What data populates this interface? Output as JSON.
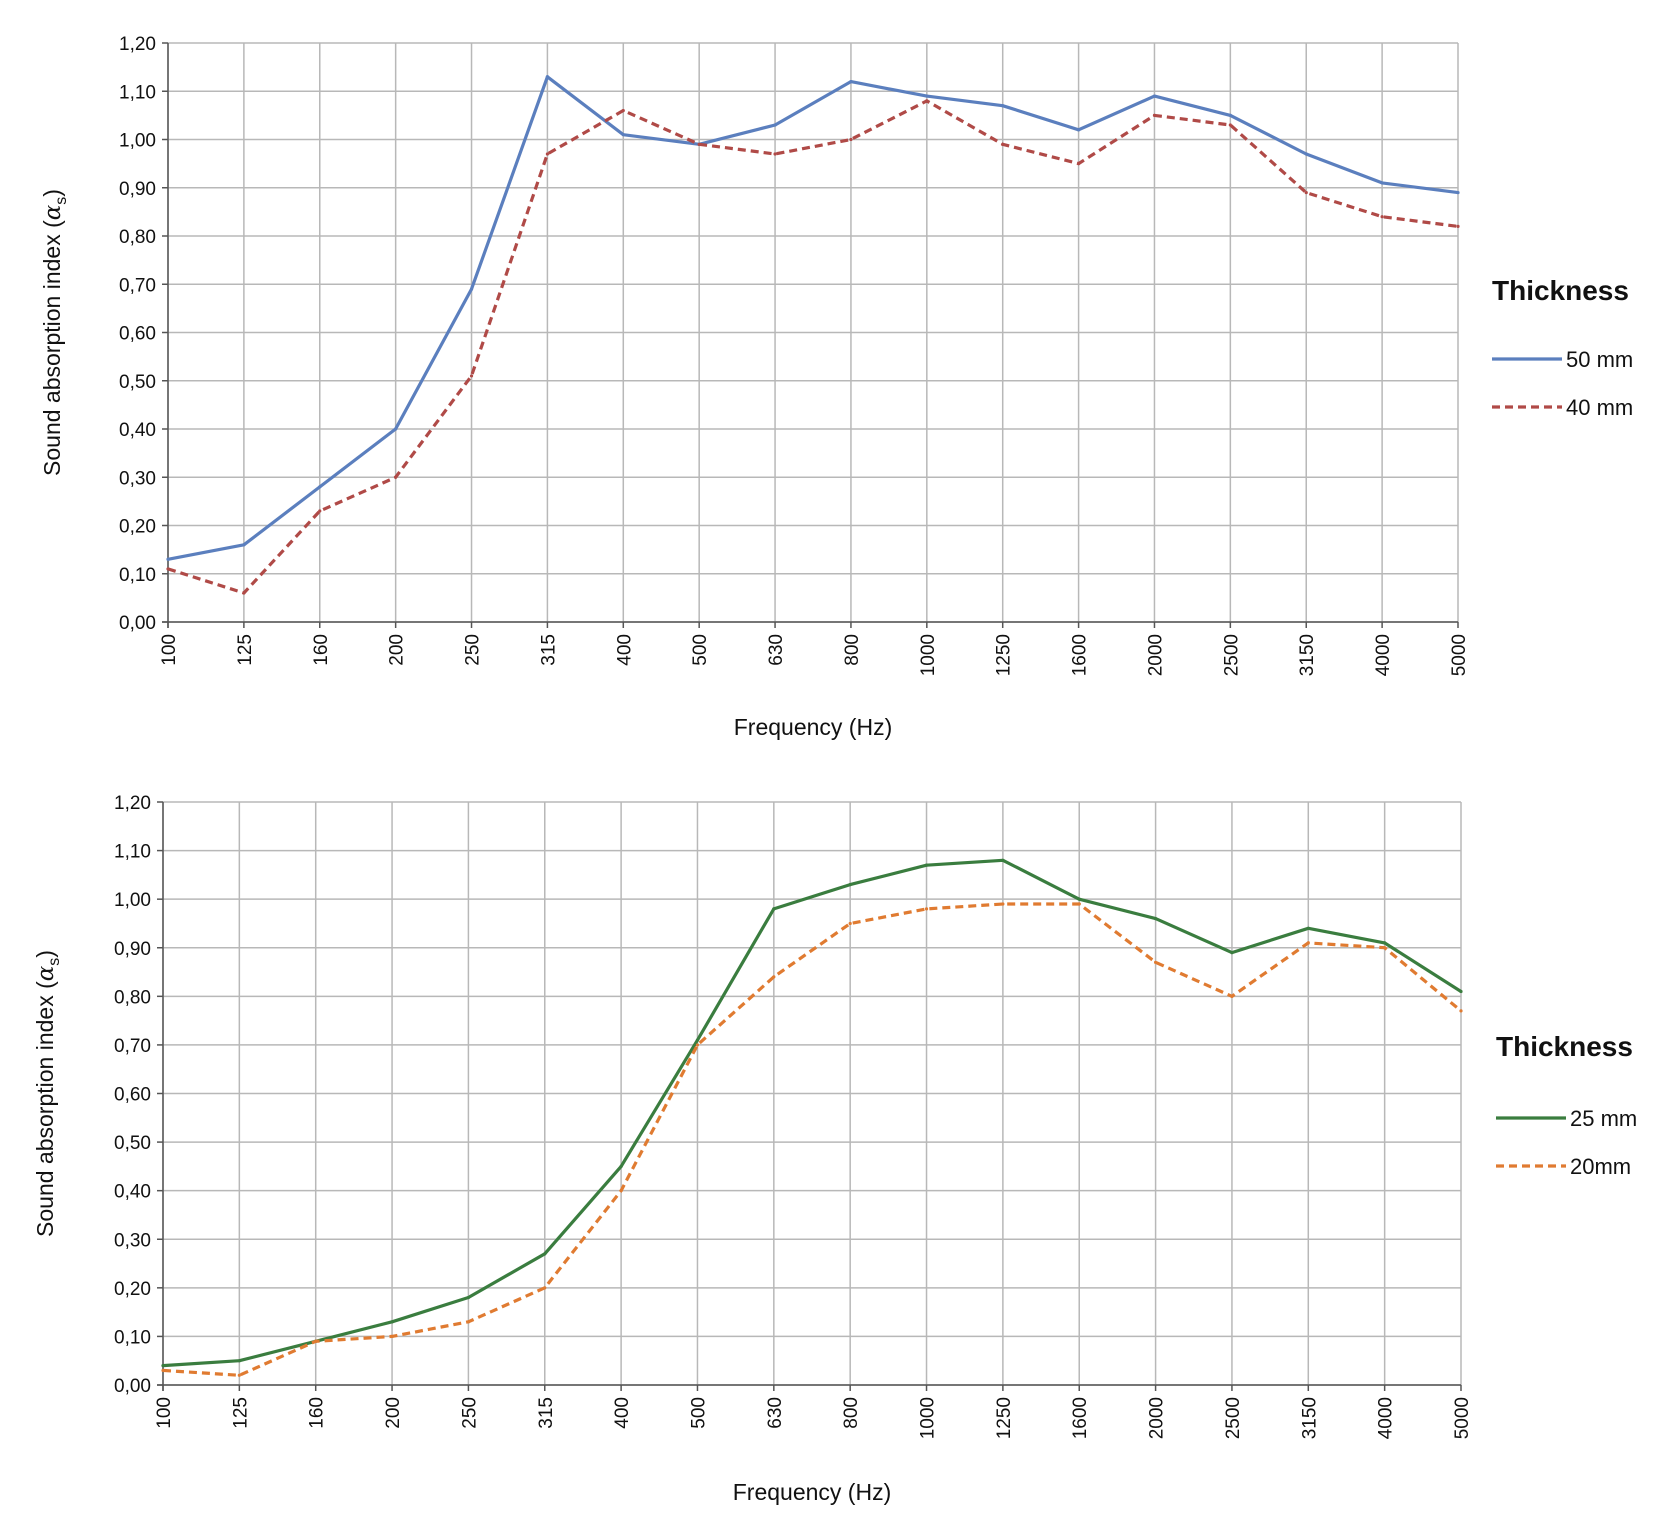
{
  "chart_data": [
    {
      "type": "line",
      "categories": [
        "100",
        "125",
        "160",
        "200",
        "250",
        "315",
        "400",
        "500",
        "630",
        "800",
        "1000",
        "1250",
        "1600",
        "2000",
        "2500",
        "3150",
        "4000",
        "5000"
      ],
      "series": [
        {
          "name": "50 mm",
          "color": "#5b7fbe",
          "dash": "solid",
          "values": [
            0.13,
            0.16,
            0.28,
            0.4,
            0.69,
            1.13,
            1.01,
            0.99,
            1.03,
            1.12,
            1.09,
            1.07,
            1.02,
            1.09,
            1.05,
            0.97,
            0.91,
            0.89
          ]
        },
        {
          "name": "40 mm",
          "color": "#b04a47",
          "dash": "dashed",
          "values": [
            0.11,
            0.06,
            0.23,
            0.3,
            0.51,
            0.97,
            1.06,
            0.99,
            0.97,
            1.0,
            1.08,
            0.99,
            0.95,
            1.05,
            1.03,
            0.89,
            0.84,
            0.82
          ]
        }
      ],
      "yticks": [
        "0,00",
        "0,10",
        "0,20",
        "0,30",
        "0,40",
        "0,50",
        "0,60",
        "0,70",
        "0,80",
        "0,90",
        "1,00",
        "1,10",
        "1,20"
      ],
      "ylim": [
        0,
        1.2
      ],
      "xlabel": "Frequency (Hz)",
      "ylabel_main": "Sound absorption index (",
      "ylabel_alpha": "α",
      "ylabel_sub": "s",
      "ylabel_close": ")",
      "legend_title": "Thickness",
      "legend_position": "right",
      "grid": true
    },
    {
      "type": "line",
      "categories": [
        "100",
        "125",
        "160",
        "200",
        "250",
        "315",
        "400",
        "500",
        "630",
        "800",
        "1000",
        "1250",
        "1600",
        "2000",
        "2500",
        "3150",
        "4000",
        "5000"
      ],
      "series": [
        {
          "name": "25 mm",
          "color": "#3a7d3f",
          "dash": "solid",
          "values": [
            0.04,
            0.05,
            0.09,
            0.13,
            0.18,
            0.27,
            0.45,
            0.71,
            0.98,
            1.03,
            1.07,
            1.08,
            1.0,
            0.96,
            0.89,
            0.94,
            0.91,
            0.81
          ]
        },
        {
          "name": "20mm",
          "color": "#e07b31",
          "dash": "dashed",
          "values": [
            0.03,
            0.02,
            0.09,
            0.1,
            0.13,
            0.2,
            0.4,
            0.7,
            0.84,
            0.95,
            0.98,
            0.99,
            0.99,
            0.87,
            0.8,
            0.91,
            0.9,
            0.77
          ]
        }
      ],
      "yticks": [
        "0,00",
        "0,10",
        "0,20",
        "0,30",
        "0,40",
        "0,50",
        "0,60",
        "0,70",
        "0,80",
        "0,90",
        "1,00",
        "1,10",
        "1,20"
      ],
      "ylim": [
        0,
        1.2
      ],
      "xlabel": "Frequency (Hz)",
      "ylabel_main": "Sound absorption index (",
      "ylabel_alpha": "α",
      "ylabel_sub": "s",
      "ylabel_close": ")",
      "legend_title": "Thickness",
      "legend_position": "right",
      "grid": true
    }
  ]
}
